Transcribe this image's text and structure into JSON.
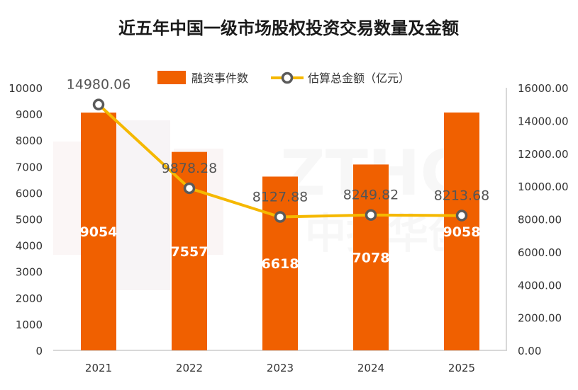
{
  "chart_data": {
    "type": "bar+line",
    "title": "近五年中国一级市场股权投资交易数量及金额",
    "categories": [
      "2021",
      "2022",
      "2023",
      "2024",
      "2025"
    ],
    "series": [
      {
        "name": "融资事件数",
        "type": "bar",
        "axis": "left",
        "color": "#f06000",
        "values": [
          9054,
          7557,
          6618,
          7078,
          9058
        ],
        "labels": [
          "9054",
          "7557",
          "6618",
          "7078",
          "9058"
        ]
      },
      {
        "name": "估算总金额（亿元）",
        "type": "line",
        "axis": "right",
        "color": "#f5b800",
        "values": [
          14980.06,
          9878.28,
          8127.88,
          8249.82,
          8213.68
        ],
        "labels": [
          "14980.06",
          "9878.28",
          "8127.88",
          "8249.82",
          "8213.68"
        ]
      }
    ],
    "y_left": {
      "min": 0,
      "max": 10000,
      "ticks": [
        "0",
        "1000",
        "2000",
        "3000",
        "4000",
        "5000",
        "6000",
        "7000",
        "8000",
        "9000",
        "10000"
      ]
    },
    "y_right": {
      "min": 0,
      "max": 16000,
      "ticks": [
        "0.00",
        "2000.00",
        "4000.00",
        "6000.00",
        "8000.00",
        "10000.00",
        "12000.00",
        "14000.00",
        "16000.00"
      ]
    },
    "legend_position": "top-center",
    "grid": false
  },
  "watermark": {
    "latin": "ZTHC",
    "chinese": "中投华创"
  }
}
